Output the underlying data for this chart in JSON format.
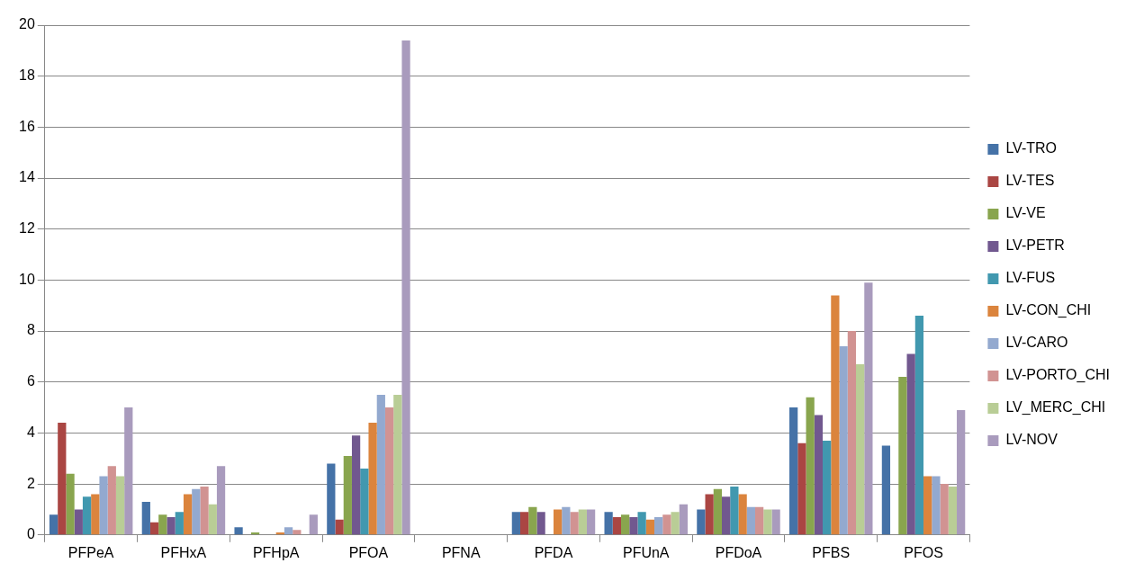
{
  "chart_data": {
    "type": "bar",
    "categories": [
      "PFPeA",
      "PFHxA",
      "PFHpA",
      "PFOA",
      "PFNA",
      "PFDA",
      "PFUnA",
      "PFDoA",
      "PFBS",
      "PFOS"
    ],
    "series": [
      {
        "name": "LV-TRO",
        "color": "#4572a7",
        "values": [
          0.8,
          1.3,
          0.3,
          2.8,
          0,
          0.9,
          0.9,
          1.0,
          5.0,
          3.5
        ]
      },
      {
        "name": "LV-TES",
        "color": "#aa4643",
        "values": [
          4.4,
          0.5,
          0,
          0.6,
          0,
          0.9,
          0.7,
          1.6,
          3.6,
          0
        ]
      },
      {
        "name": "LV-VE",
        "color": "#89a54e",
        "values": [
          2.4,
          0.8,
          0.1,
          3.1,
          0,
          1.1,
          0.8,
          1.8,
          5.4,
          6.2
        ]
      },
      {
        "name": "LV-PETR",
        "color": "#71588f",
        "values": [
          1.0,
          0.7,
          0,
          3.9,
          0,
          0.9,
          0.7,
          1.5,
          4.7,
          7.1
        ]
      },
      {
        "name": "LV-FUS",
        "color": "#4198af",
        "values": [
          1.5,
          0.9,
          0,
          2.6,
          0,
          0,
          0.9,
          1.9,
          3.7,
          8.6
        ]
      },
      {
        "name": "LV-CON_CHI",
        "color": "#db843d",
        "values": [
          1.6,
          1.6,
          0.1,
          4.4,
          0,
          1.0,
          0.6,
          1.6,
          9.4,
          2.3
        ]
      },
      {
        "name": "LV-CARO",
        "color": "#93a9cf",
        "values": [
          2.3,
          1.8,
          0.3,
          5.5,
          0,
          1.1,
          0.7,
          1.1,
          7.4,
          2.3
        ]
      },
      {
        "name": "LV-PORTO_CHI",
        "color": "#d19392",
        "values": [
          2.7,
          1.9,
          0.2,
          5.0,
          0,
          0.9,
          0.8,
          1.1,
          8.0,
          2.0
        ]
      },
      {
        "name": "LV_MERC_CHI",
        "color": "#b9cd96",
        "values": [
          2.3,
          1.2,
          0,
          5.5,
          0,
          1.0,
          0.9,
          1.0,
          6.7,
          1.9
        ]
      },
      {
        "name": "LV-NOV",
        "color": "#a99bbd",
        "values": [
          5.0,
          2.7,
          0.8,
          19.4,
          0,
          1.0,
          1.2,
          1.0,
          9.9,
          4.9
        ]
      }
    ],
    "ylim": [
      0,
      20
    ],
    "yticks": [
      0,
      2,
      4,
      6,
      8,
      10,
      12,
      14,
      16,
      18,
      20
    ],
    "grid": "y",
    "legend": "right"
  }
}
